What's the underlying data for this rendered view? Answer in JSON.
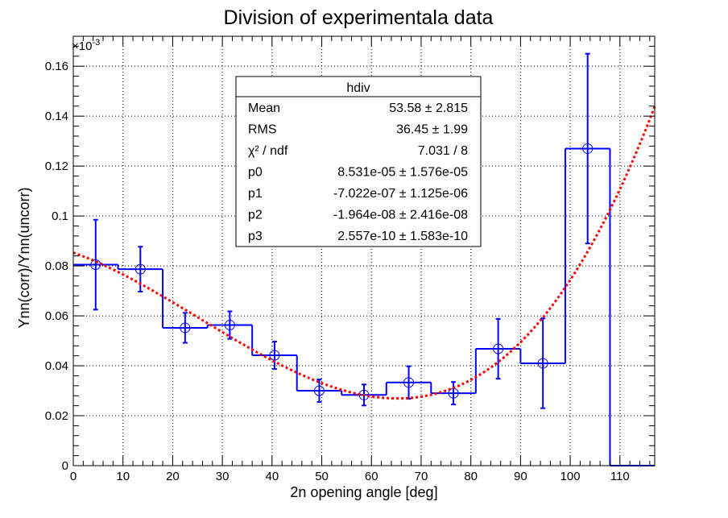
{
  "chart_data": {
    "type": "histogram-with-fit",
    "title": "Division of experimentala data",
    "xlabel": "2n opening angle [deg]",
    "ylabel": "Ynn(corr)/Ynn(uncorr)",
    "y_exponent_label": "×10",
    "y_exponent": "-3",
    "xlim": [
      0,
      117
    ],
    "ylim": [
      0,
      0.172
    ],
    "x_ticks": [
      0,
      10,
      20,
      30,
      40,
      50,
      60,
      70,
      80,
      90,
      100,
      110
    ],
    "y_ticks": [
      0,
      0.02,
      0.04,
      0.06,
      0.08,
      0.1,
      0.12,
      0.14,
      0.16
    ],
    "y_tick_labels": [
      "0",
      "0.02",
      "0.04",
      "0.06",
      "0.08",
      "0.1",
      "0.12",
      "0.14",
      "0.16"
    ],
    "grid": true,
    "bin_width": 9,
    "bins": [
      {
        "x": 4.5,
        "y": 0.0805,
        "err": 0.018
      },
      {
        "x": 13.5,
        "y": 0.0787,
        "err": 0.009
      },
      {
        "x": 22.5,
        "y": 0.0552,
        "err": 0.006
      },
      {
        "x": 31.5,
        "y": 0.0563,
        "err": 0.0055
      },
      {
        "x": 40.5,
        "y": 0.0442,
        "err": 0.0055
      },
      {
        "x": 49.5,
        "y": 0.03,
        "err": 0.0045
      },
      {
        "x": 58.5,
        "y": 0.0283,
        "err": 0.0042
      },
      {
        "x": 67.5,
        "y": 0.0333,
        "err": 0.0065
      },
      {
        "x": 76.5,
        "y": 0.029,
        "err": 0.0045
      },
      {
        "x": 85.5,
        "y": 0.0468,
        "err": 0.012
      },
      {
        "x": 94.5,
        "y": 0.041,
        "err": 0.018
      },
      {
        "x": 103.5,
        "y": 0.127,
        "err": 0.038
      },
      {
        "x": 112.5,
        "y": 0.0,
        "err": 0.0
      }
    ],
    "fit": {
      "name": "pol3",
      "p0": 8.531e-05,
      "p1": -7.022e-07,
      "p2": -1.964e-08,
      "p3": 2.557e-10,
      "y_scale": 1000
    },
    "colors": {
      "histogram": "#0000ff",
      "fit": "#ff0000",
      "grid": "#000000"
    },
    "legend_placement": "top-center"
  },
  "stats_box": {
    "title": "hdiv",
    "rows": [
      {
        "label": "Mean",
        "value": "53.58 ±  2.815"
      },
      {
        "label": "RMS",
        "value": "36.45 ±   1.99"
      },
      {
        "label": "χ² / ndf",
        "value": "7.031 / 8"
      },
      {
        "label": "p0",
        "value": "8.531e-05 ± 1.576e-05"
      },
      {
        "label": "p1",
        "value": "-7.022e-07 ± 1.125e-06"
      },
      {
        "label": "p2",
        "value": "-1.964e-08 ± 2.416e-08"
      },
      {
        "label": "p3",
        "value": "2.557e-10 ± 1.583e-10"
      }
    ]
  }
}
